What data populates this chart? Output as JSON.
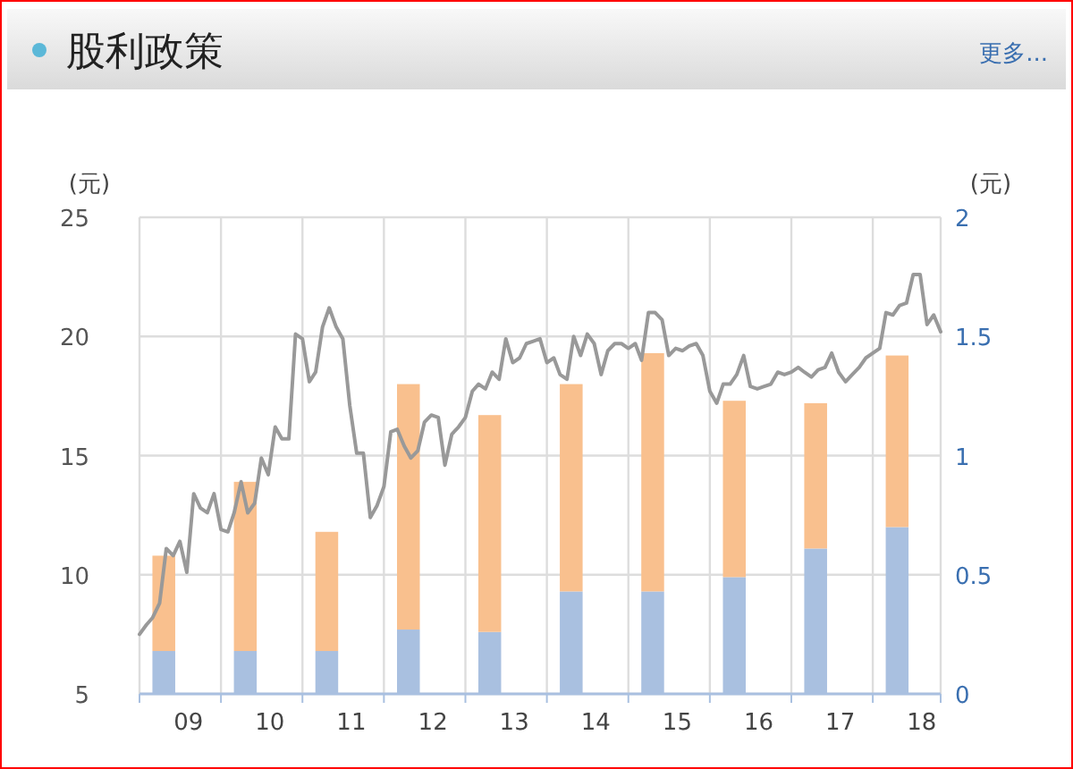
{
  "chart_data": {
    "type": "bar",
    "title": "股利政策",
    "annotations": [
      "更多..."
    ],
    "ylabel": "(元)",
    "y2label": "(元)",
    "stacked": true,
    "grid": true,
    "xlim": [
      "2009-01-01",
      "2018-11-01"
    ],
    "xticks": [
      {
        "value": "2009-08-08",
        "label": "09"
      },
      {
        "value": "2010-01-01",
        "label": null
      },
      {
        "value": "2010-08-08",
        "label": "10"
      },
      {
        "value": "2011-01-01",
        "label": null
      },
      {
        "value": "2011-08-08",
        "label": "11"
      },
      {
        "value": "2012-01-01",
        "label": null
      },
      {
        "value": "2012-08-08",
        "label": "12"
      },
      {
        "value": "2013-01-01",
        "label": null
      },
      {
        "value": "2013-08-08",
        "label": "13"
      },
      {
        "value": "2014-01-01",
        "label": null
      },
      {
        "value": "2014-08-08",
        "label": "14"
      },
      {
        "value": "2015-01-01",
        "label": null
      },
      {
        "value": "2015-08-08",
        "label": "15"
      },
      {
        "value": "2016-01-01",
        "label": null
      },
      {
        "value": "2016-08-08",
        "label": "16"
      },
      {
        "value": "2017-01-01",
        "label": null
      },
      {
        "value": "2017-08-08",
        "label": "17"
      },
      {
        "value": "2018-01-01",
        "label": null
      },
      {
        "value": "2018-08-08",
        "label": "18"
      }
    ],
    "ylim": [
      5,
      25
    ],
    "yticks": [
      5,
      10,
      15,
      20,
      25
    ],
    "y2lim": [
      0,
      2
    ],
    "y2ticks": [
      0,
      0.5,
      1,
      1.5,
      2
    ],
    "series": [
      {
        "axis": "y2",
        "color": "#a9c0e0",
        "x": [
          "2009-04-20",
          "2010-04-20",
          "2011-04-20",
          "2012-04-20",
          "2013-04-20",
          "2014-04-20",
          "2015-04-20",
          "2016-04-20",
          "2017-04-20",
          "2018-04-20"
        ],
        "values": [
          0.18,
          0.18,
          0.18,
          0.27,
          0.26,
          0.43,
          0.43,
          0.49,
          0.61,
          0.7
        ]
      },
      {
        "axis": "y2",
        "color": "#f9c08e",
        "x": [
          "2009-04-20",
          "2010-04-20",
          "2011-04-20",
          "2012-04-20",
          "2013-04-20",
          "2014-04-20",
          "2015-04-20",
          "2016-04-20",
          "2017-04-20",
          "2018-04-20"
        ],
        "values": [
          0.4,
          0.71,
          0.5,
          1.03,
          0.91,
          0.87,
          1.0,
          0.74,
          0.61,
          0.72
        ]
      },
      {
        "type": "line",
        "axis": "y",
        "color": "#999999",
        "x": [
          "2009-01",
          "2009-02",
          "2009-03",
          "2009-04",
          "2009-05",
          "2009-06",
          "2009-07",
          "2009-08",
          "2009-09",
          "2009-10",
          "2009-11",
          "2009-12",
          "2010-01",
          "2010-02",
          "2010-03",
          "2010-04",
          "2010-05",
          "2010-06",
          "2010-07",
          "2010-08",
          "2010-09",
          "2010-10",
          "2010-11",
          "2010-12",
          "2011-01",
          "2011-02",
          "2011-03",
          "2011-04",
          "2011-05",
          "2011-06",
          "2011-07",
          "2011-08",
          "2011-09",
          "2011-10",
          "2011-11",
          "2011-12",
          "2012-01",
          "2012-02",
          "2012-03",
          "2012-04",
          "2012-05",
          "2012-06",
          "2012-07",
          "2012-08",
          "2012-09",
          "2012-10",
          "2012-11",
          "2012-12",
          "2013-01",
          "2013-02",
          "2013-03",
          "2013-04",
          "2013-05",
          "2013-06",
          "2013-07",
          "2013-08",
          "2013-09",
          "2013-10",
          "2013-11",
          "2013-12",
          "2014-01",
          "2014-02",
          "2014-03",
          "2014-04",
          "2014-05",
          "2014-06",
          "2014-07",
          "2014-08",
          "2014-09",
          "2014-10",
          "2014-11",
          "2014-12",
          "2015-01",
          "2015-02",
          "2015-03",
          "2015-04",
          "2015-05",
          "2015-06",
          "2015-07",
          "2015-08",
          "2015-09",
          "2015-10",
          "2015-11",
          "2015-12",
          "2016-01",
          "2016-02",
          "2016-03",
          "2016-04",
          "2016-05",
          "2016-06",
          "2016-07",
          "2016-08",
          "2016-09",
          "2016-10",
          "2016-11",
          "2016-12",
          "2017-01",
          "2017-02",
          "2017-03",
          "2017-04",
          "2017-05",
          "2017-06",
          "2017-07",
          "2017-08",
          "2017-09",
          "2017-10",
          "2017-11",
          "2017-12",
          "2018-01",
          "2018-02",
          "2018-03",
          "2018-04",
          "2018-05",
          "2018-06",
          "2018-07",
          "2018-08",
          "2018-09",
          "2018-10",
          "2018-11"
        ],
        "values": [
          7.5,
          7.9,
          8.2,
          8.8,
          11.1,
          10.8,
          11.4,
          10.1,
          13.4,
          12.8,
          12.6,
          13.4,
          11.9,
          11.8,
          12.6,
          13.9,
          12.6,
          13.0,
          14.9,
          14.2,
          16.2,
          15.7,
          15.7,
          20.1,
          19.9,
          18.1,
          18.5,
          20.4,
          21.2,
          20.4,
          19.9,
          17.1,
          15.1,
          15.1,
          12.4,
          12.9,
          13.7,
          16.0,
          16.1,
          15.4,
          14.9,
          15.2,
          16.4,
          16.7,
          16.6,
          14.6,
          15.9,
          16.2,
          16.6,
          17.7,
          18.0,
          17.8,
          18.5,
          18.2,
          19.9,
          18.9,
          19.1,
          19.7,
          19.8,
          19.9,
          18.9,
          19.1,
          18.4,
          18.2,
          20.0,
          19.2,
          20.1,
          19.7,
          18.4,
          19.4,
          19.7,
          19.7,
          19.5,
          19.7,
          19.0,
          21.0,
          21.0,
          20.7,
          19.2,
          19.5,
          19.4,
          19.6,
          19.7,
          19.2,
          17.7,
          17.2,
          18.0,
          18.0,
          18.4,
          19.2,
          17.9,
          17.8,
          17.9,
          18.0,
          18.5,
          18.4,
          18.5,
          18.7,
          18.5,
          18.3,
          18.6,
          18.7,
          19.3,
          18.5,
          18.1,
          18.4,
          18.7,
          19.1,
          19.3,
          19.5,
          21.0,
          20.9,
          21.3,
          21.4,
          22.6,
          22.6,
          20.5,
          20.9,
          20.2
        ]
      }
    ]
  }
}
